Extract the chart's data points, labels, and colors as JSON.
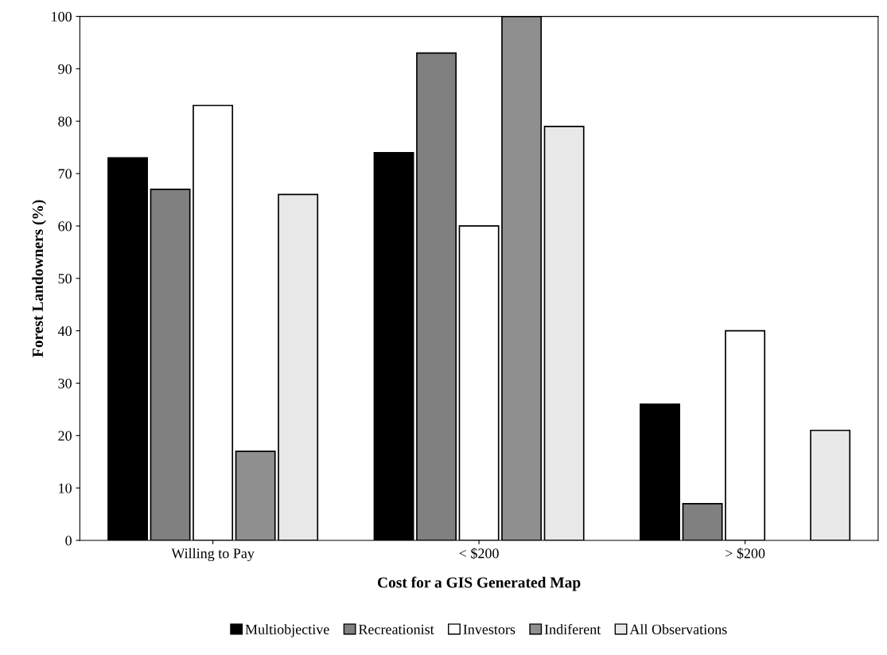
{
  "chart_data": {
    "type": "bar",
    "xlabel": "Cost for a GIS Generated Map",
    "ylabel": "Forest Landowners (%)",
    "categories": [
      "Willing to Pay",
      "< $200",
      "> $200"
    ],
    "series": [
      {
        "name": "Multiobjective",
        "color": "#000000",
        "values": [
          73,
          74,
          26
        ]
      },
      {
        "name": "Recreationist",
        "color": "#808080",
        "values": [
          67,
          93,
          7
        ]
      },
      {
        "name": "Investors",
        "color": "#ffffff",
        "values": [
          83,
          60,
          40
        ]
      },
      {
        "name": "Indiferent",
        "color": "#8f8f8f",
        "values": [
          17,
          100,
          null
        ]
      },
      {
        "name": "All Observations",
        "color": "#e8e8e8",
        "values": [
          66,
          79,
          21
        ]
      }
    ],
    "ylim": [
      0,
      100
    ],
    "yticks": [
      0,
      10,
      20,
      30,
      40,
      50,
      60,
      70,
      80,
      90,
      100
    ],
    "grid": false,
    "legend": "bottom"
  }
}
